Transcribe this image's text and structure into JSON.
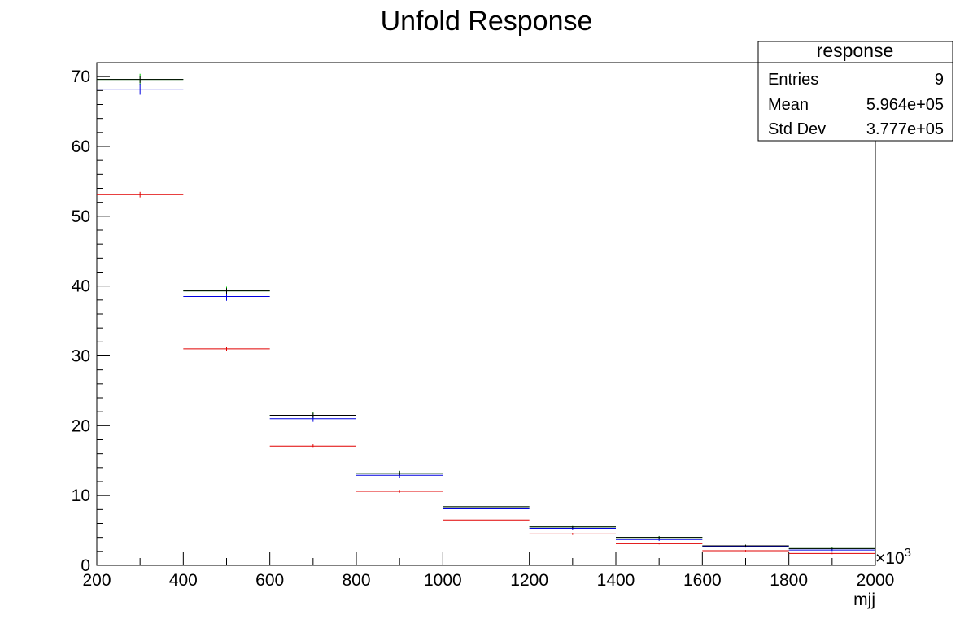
{
  "chart_data": {
    "type": "histogram",
    "title": "Unfold Response",
    "xlabel": "mjj",
    "x_multiplier": "×10",
    "x_multiplier_exp": "3",
    "xlim": [
      200,
      2000
    ],
    "ylim": [
      0,
      72
    ],
    "x_ticks": [
      200,
      400,
      600,
      800,
      1000,
      1200,
      1400,
      1600,
      1800,
      2000
    ],
    "y_ticks": [
      0,
      10,
      20,
      30,
      40,
      50,
      60,
      70
    ],
    "bin_edges": [
      200,
      400,
      600,
      800,
      1000,
      1200,
      1400,
      1600,
      1800,
      2000
    ],
    "series": [
      {
        "color": "#00c800",
        "values": [
          69.6,
          39.3,
          21.5,
          13.2,
          8.4,
          5.5,
          4.0,
          2.8,
          2.4
        ],
        "errors": [
          0.8,
          0.6,
          0.45,
          0.35,
          0.3,
          0.25,
          0.2,
          0.15,
          0.15
        ]
      },
      {
        "color": "#0000e0",
        "values": [
          68.2,
          38.5,
          21.0,
          12.9,
          8.1,
          5.3,
          3.7,
          2.7,
          2.2
        ],
        "errors": [
          0.8,
          0.6,
          0.45,
          0.35,
          0.3,
          0.25,
          0.2,
          0.15,
          0.15
        ]
      },
      {
        "color": "#000000",
        "values": [
          69.6,
          39.3,
          21.5,
          13.2,
          8.4,
          5.5,
          4.0,
          2.8,
          2.4
        ],
        "errors": [
          0.5,
          0.4,
          0.35,
          0.3,
          0.25,
          0.2,
          0.15,
          0.15,
          0.1
        ]
      },
      {
        "color": "#e00000",
        "values": [
          53.1,
          31.0,
          17.1,
          10.6,
          6.5,
          4.5,
          3.1,
          2.1,
          1.7
        ],
        "errors": [
          0.4,
          0.3,
          0.25,
          0.2,
          0.15,
          0.15,
          0.1,
          0.1,
          0.1
        ]
      }
    ],
    "grid": false,
    "legend": "none"
  },
  "stats": {
    "name": "response",
    "entries_label": "Entries",
    "entries_value": "9",
    "mean_label": "Mean",
    "mean_value": "5.964e+05",
    "stddev_label": "Std Dev",
    "stddev_value": "3.777e+05"
  }
}
